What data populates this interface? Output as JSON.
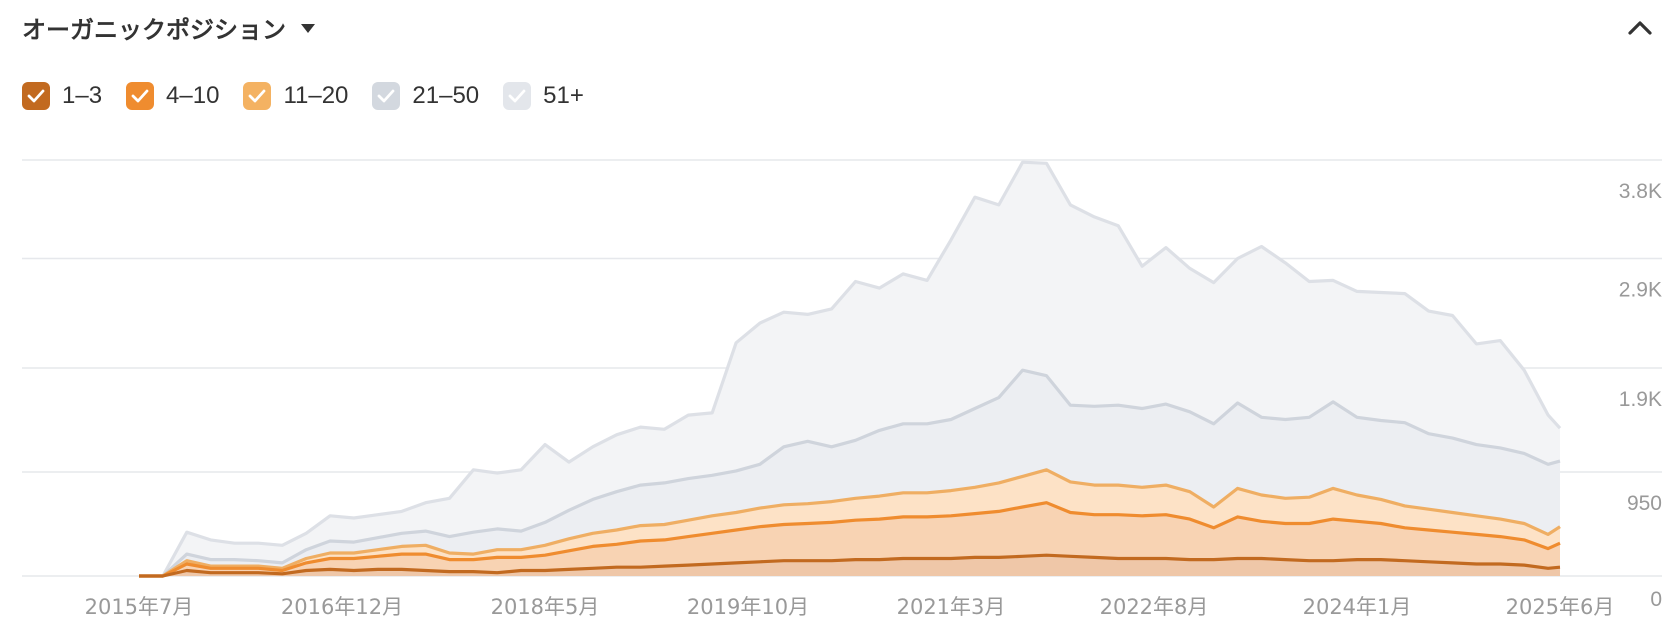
{
  "header": {
    "title": "オーガニックポジション"
  },
  "legend": [
    {
      "label": "1–3",
      "color": "#c26a20"
    },
    {
      "label": "4–10",
      "color": "#ef8c2f"
    },
    {
      "label": "11–20",
      "color": "#f4b262"
    },
    {
      "label": "21–50",
      "color": "#d3d8df"
    },
    {
      "label": "51+",
      "color": "#e3e6eb"
    }
  ],
  "chart_data": {
    "type": "area",
    "stacked": true,
    "ylim": [
      0,
      3800
    ],
    "y_ticks": [
      0,
      950,
      1900,
      2900,
      3800
    ],
    "y_tick_labels": [
      "0",
      "950",
      "1.9K",
      "2.9K",
      "3.8K"
    ],
    "x_tick_labels": [
      "2015年7月",
      "2016年12月",
      "2018年5月",
      "2019年10月",
      "2021年3月",
      "2022年8月",
      "2024年1月",
      "2025年6月"
    ],
    "x_tick_dates": [
      "2015-07",
      "2016-12",
      "2018-05",
      "2019-10",
      "2021-03",
      "2022-08",
      "2024-01",
      "2025-06"
    ],
    "x": [
      "2015-07",
      "2015-09",
      "2015-11",
      "2016-01",
      "2016-03",
      "2016-05",
      "2016-07",
      "2016-09",
      "2016-11",
      "2017-01",
      "2017-03",
      "2017-05",
      "2017-07",
      "2017-09",
      "2017-11",
      "2018-01",
      "2018-03",
      "2018-05",
      "2018-07",
      "2018-09",
      "2018-11",
      "2019-01",
      "2019-03",
      "2019-05",
      "2019-07",
      "2019-09",
      "2019-11",
      "2020-01",
      "2020-03",
      "2020-05",
      "2020-07",
      "2020-09",
      "2020-11",
      "2021-01",
      "2021-03",
      "2021-05",
      "2021-07",
      "2021-09",
      "2021-11",
      "2022-01",
      "2022-03",
      "2022-05",
      "2022-07",
      "2022-09",
      "2022-11",
      "2023-01",
      "2023-03",
      "2023-05",
      "2023-07",
      "2023-09",
      "2023-11",
      "2024-01",
      "2024-03",
      "2024-05",
      "2024-07",
      "2024-09",
      "2024-11",
      "2025-01",
      "2025-03",
      "2025-05",
      "2025-06"
    ],
    "series": [
      {
        "name": "1–3",
        "values": [
          0,
          0,
          50,
          30,
          30,
          30,
          20,
          50,
          60,
          50,
          60,
          60,
          50,
          40,
          40,
          30,
          50,
          50,
          60,
          70,
          80,
          80,
          90,
          100,
          110,
          120,
          130,
          140,
          140,
          140,
          150,
          150,
          160,
          160,
          160,
          170,
          170,
          180,
          190,
          180,
          170,
          160,
          160,
          160,
          150,
          150,
          160,
          160,
          150,
          140,
          140,
          150,
          150,
          140,
          130,
          120,
          110,
          110,
          100,
          70,
          80
        ]
      },
      {
        "name": "4–10",
        "values": [
          0,
          0,
          60,
          40,
          40,
          40,
          30,
          70,
          100,
          110,
          120,
          140,
          150,
          110,
          110,
          140,
          120,
          140,
          170,
          200,
          210,
          240,
          240,
          260,
          280,
          300,
          320,
          330,
          340,
          350,
          360,
          370,
          380,
          380,
          390,
          400,
          420,
          450,
          480,
          400,
          390,
          400,
          390,
          400,
          370,
          290,
          380,
          340,
          330,
          340,
          380,
          350,
          330,
          300,
          290,
          280,
          270,
          250,
          230,
          180,
          220
        ]
      },
      {
        "name": "11–20",
        "values": [
          0,
          0,
          30,
          20,
          20,
          20,
          20,
          40,
          50,
          50,
          60,
          70,
          80,
          60,
          50,
          70,
          70,
          90,
          110,
          120,
          130,
          140,
          140,
          150,
          160,
          160,
          170,
          180,
          180,
          190,
          200,
          210,
          220,
          220,
          230,
          240,
          260,
          280,
          300,
          280,
          270,
          270,
          260,
          270,
          250,
          190,
          260,
          240,
          230,
          240,
          280,
          240,
          220,
          200,
          190,
          180,
          170,
          160,
          150,
          130,
          150
        ]
      },
      {
        "name": "21–50",
        "values": [
          0,
          0,
          60,
          60,
          60,
          50,
          50,
          80,
          110,
          100,
          110,
          120,
          130,
          150,
          200,
          190,
          170,
          210,
          260,
          310,
          350,
          370,
          380,
          380,
          370,
          380,
          400,
          530,
          570,
          500,
          530,
          600,
          630,
          630,
          650,
          720,
          780,
          970,
          860,
          700,
          720,
          730,
          720,
          740,
          730,
          760,
          780,
          710,
          720,
          730,
          790,
          710,
          720,
          760,
          690,
          680,
          650,
          650,
          640,
          640,
          600
        ]
      },
      {
        "name": "51+",
        "values": [
          0,
          0,
          200,
          180,
          150,
          160,
          160,
          150,
          230,
          220,
          210,
          200,
          260,
          350,
          570,
          510,
          560,
          710,
          440,
          480,
          520,
          530,
          490,
          580,
          570,
          1170,
          1290,
          1230,
          1160,
          1260,
          1450,
          1300,
          1370,
          1310,
          1640,
          1930,
          1760,
          1900,
          1940,
          1830,
          1730,
          1640,
          1300,
          1430,
          1310,
          1290,
          1320,
          1560,
          1430,
          1240,
          1110,
          1150,
          1170,
          1180,
          1120,
          1120,
          920,
          980,
          760,
          450,
          300
        ]
      }
    ]
  }
}
